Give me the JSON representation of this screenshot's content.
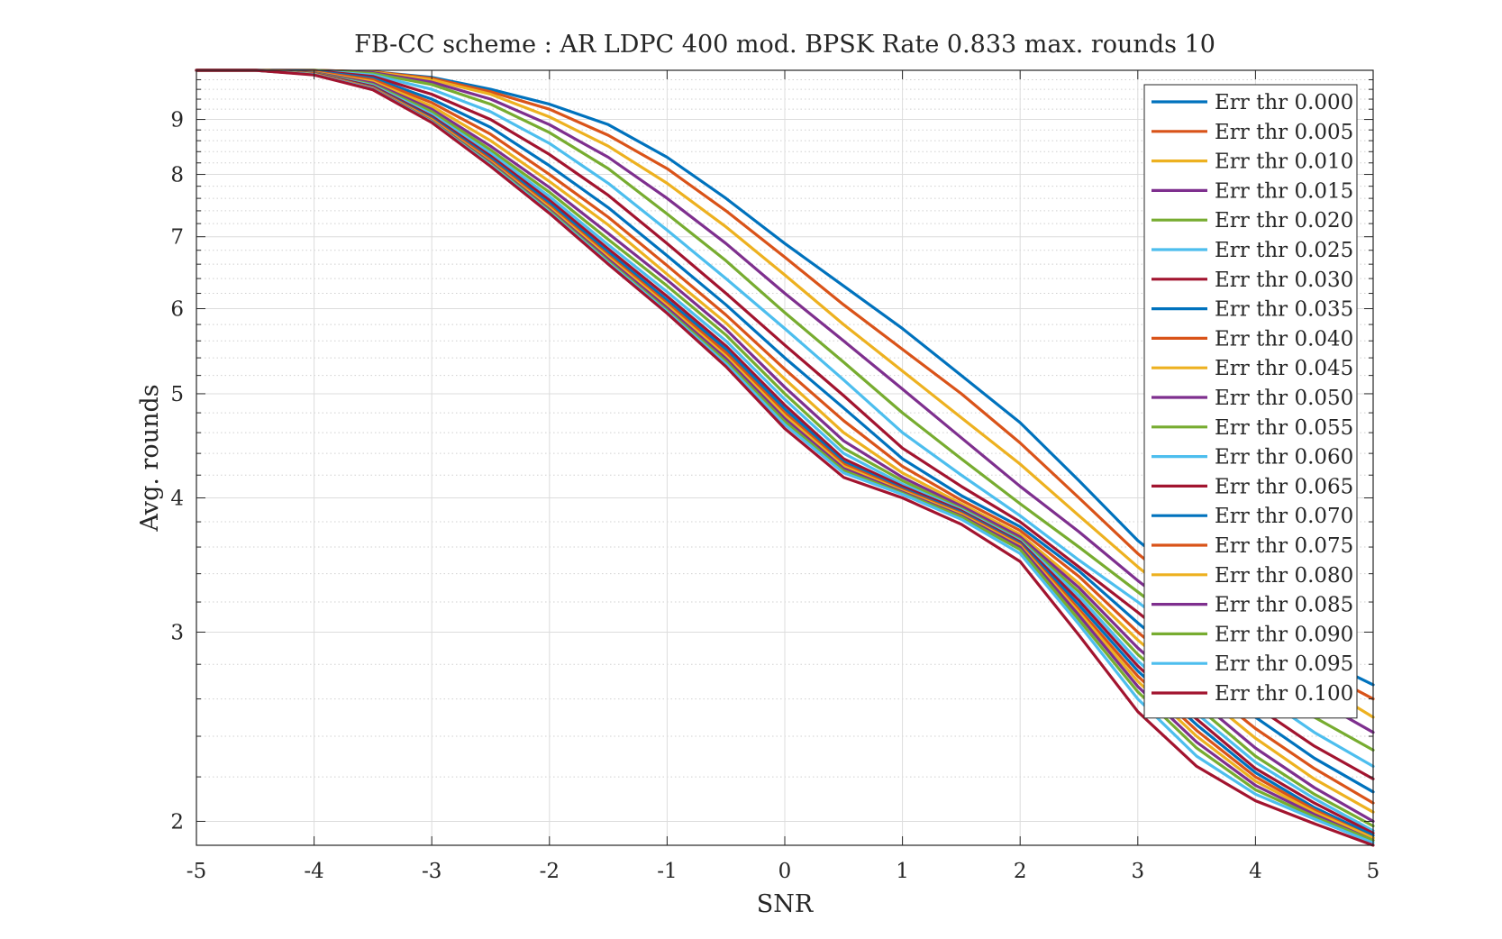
{
  "chart_data": {
    "type": "line",
    "title": "FB-CC scheme : AR LDPC 400 mod. BPSK Rate 0.833 max. rounds 10",
    "xlabel": "SNR",
    "ylabel": "Avg. rounds",
    "xlim": [
      -5,
      5
    ],
    "ylim": [
      1.9,
      10
    ],
    "yscale": "log",
    "grid": "on (major and minor)",
    "legend_position": "top-right",
    "xticks": [
      "-5",
      "-4",
      "-3",
      "-2",
      "-1",
      "0",
      "1",
      "2",
      "3",
      "4",
      "5"
    ],
    "xtick_values": [
      -5,
      -4,
      -3,
      -2,
      -1,
      0,
      1,
      2,
      3,
      4,
      5
    ],
    "yticks": [
      "2",
      "3",
      "4",
      "5",
      "6",
      "7",
      "8",
      "9"
    ],
    "ytick_values": [
      2,
      3,
      4,
      5,
      6,
      7,
      8,
      9
    ],
    "x": [
      -5,
      -4.5,
      -4,
      -3.5,
      -3,
      -2.5,
      -2,
      -1.5,
      -1,
      -0.5,
      0,
      0.5,
      1,
      1.5,
      2,
      2.5,
      3,
      3.5,
      4,
      4.5,
      5
    ],
    "series": [
      {
        "name": "Err thr 0.000",
        "color": "#0072BD",
        "values": [
          10,
          10,
          10,
          9.97,
          9.85,
          9.6,
          9.3,
          8.9,
          8.3,
          7.6,
          6.9,
          6.3,
          5.75,
          5.2,
          4.7,
          4.15,
          3.65,
          3.3,
          3.05,
          2.85,
          2.68
        ]
      },
      {
        "name": "Err thr 0.005",
        "color": "#D95319",
        "values": [
          10,
          10,
          10,
          9.97,
          9.83,
          9.55,
          9.2,
          8.7,
          8.1,
          7.4,
          6.7,
          6.05,
          5.5,
          5.0,
          4.5,
          4.0,
          3.55,
          3.2,
          2.98,
          2.78,
          2.6
        ]
      },
      {
        "name": "Err thr 0.010",
        "color": "#EDB120",
        "values": [
          10,
          10,
          10,
          9.96,
          9.8,
          9.5,
          9.05,
          8.5,
          7.85,
          7.15,
          6.45,
          5.8,
          5.25,
          4.75,
          4.3,
          3.85,
          3.45,
          3.12,
          2.9,
          2.7,
          2.5
        ]
      },
      {
        "name": "Err thr 0.015",
        "color": "#7E2F8E",
        "values": [
          10,
          10,
          10,
          9.95,
          9.75,
          9.4,
          8.9,
          8.3,
          7.6,
          6.9,
          6.2,
          5.6,
          5.05,
          4.55,
          4.1,
          3.72,
          3.35,
          3.04,
          2.82,
          2.6,
          2.42
        ]
      },
      {
        "name": "Err thr 0.020",
        "color": "#77AC30",
        "values": [
          10,
          10,
          10,
          9.93,
          9.7,
          9.3,
          8.75,
          8.1,
          7.35,
          6.65,
          5.95,
          5.35,
          4.8,
          4.35,
          3.95,
          3.6,
          3.27,
          2.97,
          2.73,
          2.5,
          2.33
        ]
      },
      {
        "name": "Err thr 0.025",
        "color": "#4DBEEE",
        "values": [
          10,
          10,
          9.99,
          9.9,
          9.6,
          9.15,
          8.55,
          7.85,
          7.1,
          6.4,
          5.75,
          5.15,
          4.6,
          4.2,
          3.85,
          3.5,
          3.2,
          2.9,
          2.64,
          2.42,
          2.25
        ]
      },
      {
        "name": "Err thr 0.030",
        "color": "#A2142F",
        "values": [
          10,
          10,
          9.99,
          9.87,
          9.5,
          9.0,
          8.35,
          7.65,
          6.9,
          6.2,
          5.55,
          4.98,
          4.45,
          4.1,
          3.8,
          3.45,
          3.13,
          2.83,
          2.56,
          2.35,
          2.19
        ]
      },
      {
        "name": "Err thr 0.035",
        "color": "#0072BD",
        "values": [
          10,
          10,
          9.98,
          9.83,
          9.4,
          8.85,
          8.15,
          7.45,
          6.72,
          6.05,
          5.4,
          4.85,
          4.35,
          4.02,
          3.76,
          3.42,
          3.06,
          2.76,
          2.5,
          2.29,
          2.13
        ]
      },
      {
        "name": "Err thr 0.040",
        "color": "#D95319",
        "values": [
          10,
          10,
          9.97,
          9.8,
          9.33,
          8.72,
          8.0,
          7.3,
          6.58,
          5.92,
          5.27,
          4.72,
          4.28,
          3.98,
          3.73,
          3.38,
          3.0,
          2.7,
          2.44,
          2.24,
          2.08
        ]
      },
      {
        "name": "Err thr 0.045",
        "color": "#EDB120",
        "values": [
          10,
          10,
          9.96,
          9.76,
          9.26,
          8.6,
          7.88,
          7.18,
          6.46,
          5.82,
          5.16,
          4.6,
          4.22,
          3.95,
          3.7,
          3.33,
          2.95,
          2.65,
          2.39,
          2.19,
          2.04
        ]
      },
      {
        "name": "Err thr 0.050",
        "color": "#7E2F8E",
        "values": [
          10,
          10,
          9.95,
          9.73,
          9.2,
          8.5,
          7.78,
          7.05,
          6.38,
          5.74,
          5.07,
          4.52,
          4.18,
          3.93,
          3.68,
          3.3,
          2.9,
          2.6,
          2.34,
          2.15,
          2.0
        ]
      },
      {
        "name": "Err thr 0.055",
        "color": "#77AC30",
        "values": [
          10,
          10,
          9.94,
          9.7,
          9.15,
          8.43,
          7.7,
          6.96,
          6.3,
          5.67,
          5.0,
          4.45,
          4.15,
          3.91,
          3.66,
          3.27,
          2.86,
          2.56,
          2.3,
          2.12,
          1.98
        ]
      },
      {
        "name": "Err thr 0.060",
        "color": "#4DBEEE",
        "values": [
          10,
          10,
          9.93,
          9.68,
          9.1,
          8.37,
          7.63,
          6.88,
          6.22,
          5.6,
          4.94,
          4.4,
          4.12,
          3.9,
          3.65,
          3.24,
          2.82,
          2.52,
          2.27,
          2.1,
          1.96
        ]
      },
      {
        "name": "Err thr 0.065",
        "color": "#A2142F",
        "values": [
          10,
          10,
          9.93,
          9.66,
          9.06,
          8.32,
          7.57,
          6.82,
          6.16,
          5.54,
          4.88,
          4.35,
          4.1,
          3.89,
          3.64,
          3.21,
          2.79,
          2.49,
          2.24,
          2.08,
          1.95
        ]
      },
      {
        "name": "Err thr 0.070",
        "color": "#0072BD",
        "values": [
          10,
          10,
          9.92,
          9.64,
          9.03,
          8.28,
          7.52,
          6.77,
          6.11,
          5.5,
          4.84,
          4.32,
          4.08,
          3.88,
          3.63,
          3.18,
          2.76,
          2.46,
          2.22,
          2.06,
          1.94
        ]
      },
      {
        "name": "Err thr 0.075",
        "color": "#D95319",
        "values": [
          10,
          10,
          9.92,
          9.63,
          9.01,
          8.25,
          7.48,
          6.73,
          6.07,
          5.46,
          4.8,
          4.3,
          4.07,
          3.87,
          3.62,
          3.15,
          2.73,
          2.43,
          2.2,
          2.05,
          1.93
        ]
      },
      {
        "name": "Err thr 0.080",
        "color": "#EDB120",
        "values": [
          10,
          10,
          9.92,
          9.62,
          8.99,
          8.22,
          7.45,
          6.7,
          6.04,
          5.42,
          4.77,
          4.28,
          4.06,
          3.86,
          3.61,
          3.13,
          2.7,
          2.4,
          2.18,
          2.04,
          1.93
        ]
      },
      {
        "name": "Err thr 0.085",
        "color": "#7E2F8E",
        "values": [
          10,
          10,
          9.91,
          9.61,
          8.97,
          8.2,
          7.42,
          6.67,
          6.01,
          5.39,
          4.74,
          4.26,
          4.05,
          3.85,
          3.6,
          3.11,
          2.67,
          2.37,
          2.16,
          2.03,
          1.92
        ]
      },
      {
        "name": "Err thr 0.090",
        "color": "#77AC30",
        "values": [
          10,
          10,
          9.91,
          9.6,
          8.96,
          8.18,
          7.4,
          6.64,
          5.98,
          5.36,
          4.71,
          4.24,
          4.04,
          3.84,
          3.58,
          3.08,
          2.64,
          2.34,
          2.14,
          2.02,
          1.92
        ]
      },
      {
        "name": "Err thr 0.095",
        "color": "#4DBEEE",
        "values": [
          10,
          10,
          9.91,
          9.6,
          8.95,
          8.16,
          7.38,
          6.62,
          5.96,
          5.33,
          4.68,
          4.22,
          4.03,
          3.82,
          3.55,
          3.05,
          2.6,
          2.3,
          2.12,
          2.01,
          1.91
        ]
      },
      {
        "name": "Err thr 0.100",
        "color": "#A2142F",
        "values": [
          10,
          10,
          9.9,
          9.59,
          8.94,
          8.14,
          7.36,
          6.6,
          5.94,
          5.3,
          4.64,
          4.18,
          4.0,
          3.78,
          3.49,
          2.98,
          2.53,
          2.25,
          2.09,
          1.99,
          1.9
        ]
      }
    ]
  }
}
